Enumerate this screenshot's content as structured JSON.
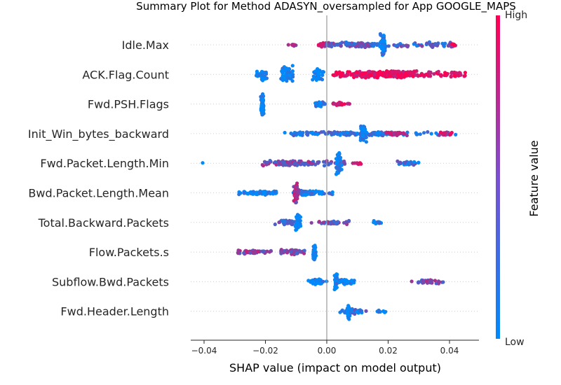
{
  "chart_data": {
    "type": "scatter",
    "title": "Summary Plot for Method ADASYN_oversampled for App GOOGLE_MAPS",
    "xlabel": "SHAP value (impact on model output)",
    "xlim": [
      -0.045,
      0.05
    ],
    "x_ticks": [
      -0.04,
      -0.02,
      0.0,
      0.02,
      0.04
    ],
    "x_tick_labels": [
      "−0.04",
      "−0.02",
      "0.00",
      "0.02",
      "0.04"
    ],
    "zero_line": 0.0,
    "colorbar": {
      "label": "Feature value",
      "high_label": "High",
      "low_label": "Low",
      "low_color": "#008afb",
      "high_color": "#ff0052"
    },
    "features": [
      {
        "name": "Idle.Max",
        "clusters": [
          {
            "min": -0.013,
            "max": -0.009,
            "center": -0.011,
            "spread": 2,
            "color": 0.55,
            "n": 12
          },
          {
            "min": -0.003,
            "max": 0.0,
            "center": -0.0015,
            "spread": 3,
            "color": 0.7,
            "n": 14
          },
          {
            "min": 0.0,
            "max": 0.042,
            "center": 0.01,
            "spread": 4,
            "color": 0.3,
            "n": 160
          },
          {
            "min": 0.017,
            "max": 0.019,
            "center": 0.0185,
            "spread": 16,
            "color": 0.05,
            "n": 60
          },
          {
            "min": 0.04,
            "max": 0.043,
            "center": 0.0415,
            "spread": 2,
            "color": 0.9,
            "n": 6
          }
        ]
      },
      {
        "name": "ACK.Flag.Count",
        "clusters": [
          {
            "min": -0.023,
            "max": -0.019,
            "center": -0.021,
            "spread": 9,
            "color": 0.0,
            "n": 40
          },
          {
            "min": -0.015,
            "max": -0.011,
            "center": -0.0125,
            "spread": 14,
            "color": 0.0,
            "n": 50
          },
          {
            "min": -0.005,
            "max": -0.001,
            "center": -0.003,
            "spread": 9,
            "color": 0.0,
            "n": 40
          },
          {
            "min": 0.002,
            "max": 0.046,
            "center": 0.018,
            "spread": 5,
            "color": 0.95,
            "n": 300
          }
        ]
      },
      {
        "name": "Fwd.PSH.Flags",
        "clusters": [
          {
            "min": -0.0215,
            "max": -0.0205,
            "center": -0.021,
            "spread": 17,
            "color": 0.0,
            "n": 70
          },
          {
            "min": -0.004,
            "max": 0.0,
            "center": -0.002,
            "spread": 4,
            "color": 0.05,
            "n": 25
          },
          {
            "min": 0.0,
            "max": 0.0075,
            "center": 0.004,
            "spread": 3,
            "color": 0.9,
            "n": 25
          }
        ]
      },
      {
        "name": "Init_Win_bytes_backward",
        "clusters": [
          {
            "min": -0.015,
            "max": 0.042,
            "center": 0.012,
            "spread": 3,
            "color": 0.15,
            "n": 180
          },
          {
            "min": 0.011,
            "max": 0.013,
            "center": 0.012,
            "spread": 17,
            "color": 0.05,
            "n": 50
          },
          {
            "min": 0.019,
            "max": 0.027,
            "center": 0.023,
            "spread": 3,
            "color": 0.75,
            "n": 30
          },
          {
            "min": 0.036,
            "max": 0.041,
            "center": 0.0385,
            "spread": 3,
            "color": 0.7,
            "n": 20
          }
        ]
      },
      {
        "name": "Fwd.Packet.Length.Min",
        "clusters": [
          {
            "min": -0.0405,
            "max": -0.0395,
            "center": -0.04,
            "spread": 1,
            "color": 0.0,
            "n": 1
          },
          {
            "min": -0.021,
            "max": 0.006,
            "center": -0.012,
            "spread": 4,
            "color": 0.45,
            "n": 150
          },
          {
            "min": 0.003,
            "max": 0.005,
            "center": 0.004,
            "spread": 17,
            "color": 0.0,
            "n": 55
          },
          {
            "min": 0.008,
            "max": 0.013,
            "center": 0.0105,
            "spread": 2,
            "color": 0.9,
            "n": 12
          },
          {
            "min": 0.022,
            "max": 0.031,
            "center": 0.026,
            "spread": 3,
            "color": 0.2,
            "n": 35
          }
        ]
      },
      {
        "name": "Bwd.Packet.Length.Mean",
        "clusters": [
          {
            "min": -0.029,
            "max": -0.016,
            "center": -0.022,
            "spread": 3,
            "color": 0.0,
            "n": 70
          },
          {
            "min": -0.013,
            "max": 0.002,
            "center": -0.007,
            "spread": 4,
            "color": 0.1,
            "n": 80
          },
          {
            "min": -0.011,
            "max": -0.009,
            "center": -0.01,
            "spread": 16,
            "color": 0.6,
            "n": 40
          }
        ]
      },
      {
        "name": "Total.Backward.Packets",
        "clusters": [
          {
            "min": -0.017,
            "max": -0.009,
            "center": -0.013,
            "spread": 4,
            "color": 0.35,
            "n": 50
          },
          {
            "min": -0.0105,
            "max": -0.0085,
            "center": -0.0095,
            "spread": 15,
            "color": 0.0,
            "n": 40
          },
          {
            "min": -0.005,
            "max": 0.008,
            "center": 0.002,
            "spread": 3,
            "color": 0.4,
            "n": 40
          },
          {
            "min": 0.015,
            "max": 0.018,
            "center": 0.0165,
            "spread": 3,
            "color": 0.1,
            "n": 10
          }
        ]
      },
      {
        "name": "Flow.Packets.s",
        "clusters": [
          {
            "min": -0.029,
            "max": -0.018,
            "center": -0.024,
            "spread": 3,
            "color": 0.55,
            "n": 60
          },
          {
            "min": -0.015,
            "max": -0.006,
            "center": -0.01,
            "spread": 4,
            "color": 0.45,
            "n": 60
          },
          {
            "min": -0.0045,
            "max": -0.0035,
            "center": -0.004,
            "spread": 15,
            "color": 0.0,
            "n": 40
          }
        ]
      },
      {
        "name": "Subflow.Bwd.Packets",
        "clusters": [
          {
            "min": -0.006,
            "max": 0.0,
            "center": -0.003,
            "spread": 5,
            "color": 0.05,
            "n": 35
          },
          {
            "min": 0.002,
            "max": 0.01,
            "center": 0.006,
            "spread": 4,
            "color": 0.05,
            "n": 50
          },
          {
            "min": 0.0025,
            "max": 0.0035,
            "center": 0.003,
            "spread": 15,
            "color": 0.0,
            "n": 30
          },
          {
            "min": 0.027,
            "max": 0.038,
            "center": 0.032,
            "spread": 4,
            "color": 0.45,
            "n": 40
          }
        ]
      },
      {
        "name": "Fwd.Header.Length",
        "clusters": [
          {
            "min": 0.004,
            "max": 0.013,
            "center": 0.008,
            "spread": 4,
            "color": 0.2,
            "n": 60
          },
          {
            "min": 0.0065,
            "max": 0.0075,
            "center": 0.007,
            "spread": 12,
            "color": 0.0,
            "n": 30
          },
          {
            "min": 0.014,
            "max": 0.022,
            "center": 0.018,
            "spread": 2,
            "color": 0.0,
            "n": 8
          }
        ]
      }
    ]
  }
}
